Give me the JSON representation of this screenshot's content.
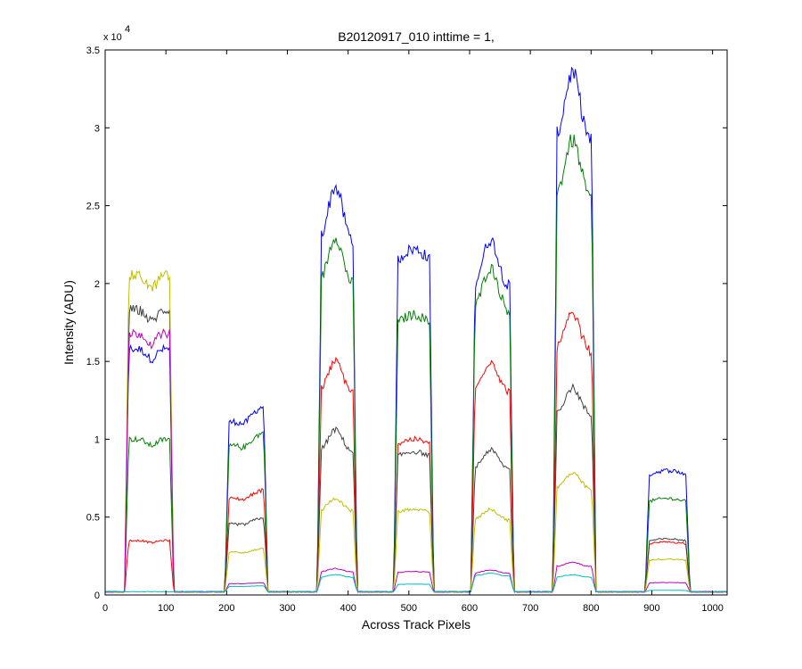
{
  "window": {
    "background": "#ffffff"
  },
  "chart_data": {
    "type": "line",
    "title": "B20120917_010 inttime = 1,",
    "xlabel": "Across Track Pixels",
    "ylabel": "Intensity (ADU)",
    "y_multiplier_label": "x 10",
    "y_multiplier_exponent": "4",
    "xlim": [
      0,
      1024
    ],
    "ylim": [
      0,
      3.5
    ],
    "xticks": [
      0,
      100,
      200,
      300,
      400,
      500,
      600,
      700,
      800,
      900,
      1000
    ],
    "yticks": [
      0,
      0.5,
      1,
      1.5,
      2,
      2.5,
      3,
      3.5
    ],
    "ytick_labels": [
      "0",
      "0.5",
      "1",
      "1.5",
      "2",
      "2.5",
      "3",
      "3.5"
    ],
    "grid": false,
    "legend": "none",
    "baseline": 0.02,
    "plateaus": [
      {
        "x_start": 35,
        "x_end": 110,
        "shape": "flat-dip"
      },
      {
        "x_start": 200,
        "x_end": 265,
        "shape": "rise"
      },
      {
        "x_start": 352,
        "x_end": 412,
        "shape": "peak"
      },
      {
        "x_start": 478,
        "x_end": 538,
        "shape": "flat"
      },
      {
        "x_start": 605,
        "x_end": 670,
        "shape": "peak"
      },
      {
        "x_start": 740,
        "x_end": 805,
        "shape": "peak"
      },
      {
        "x_start": 892,
        "x_end": 960,
        "shape": "flat"
      }
    ],
    "series": [
      {
        "color": "#0000ff",
        "levels": [
          1.58,
          1.22,
          2.62,
          2.22,
          2.28,
          3.35,
          0.8
        ]
      },
      {
        "color": "#008000",
        "levels": [
          1.0,
          1.05,
          2.3,
          1.8,
          2.1,
          2.92,
          0.62
        ]
      },
      {
        "color": "#ff0000",
        "levels": [
          0.35,
          0.68,
          1.5,
          1.0,
          1.5,
          1.8,
          0.34
        ]
      },
      {
        "color": "#404040",
        "levels": [
          1.83,
          0.5,
          1.06,
          0.92,
          0.93,
          1.33,
          0.36
        ]
      },
      {
        "color": "#bfbf00",
        "levels": [
          2.05,
          0.3,
          0.62,
          0.55,
          0.55,
          0.78,
          0.23
        ]
      },
      {
        "color": "#bf00bf",
        "levels": [
          1.68,
          0.08,
          0.17,
          0.15,
          0.16,
          0.21,
          0.08
        ]
      },
      {
        "color": "#00bfbf",
        "levels": [
          0.02,
          0.06,
          0.13,
          0.07,
          0.14,
          0.13,
          0.03
        ]
      }
    ]
  }
}
